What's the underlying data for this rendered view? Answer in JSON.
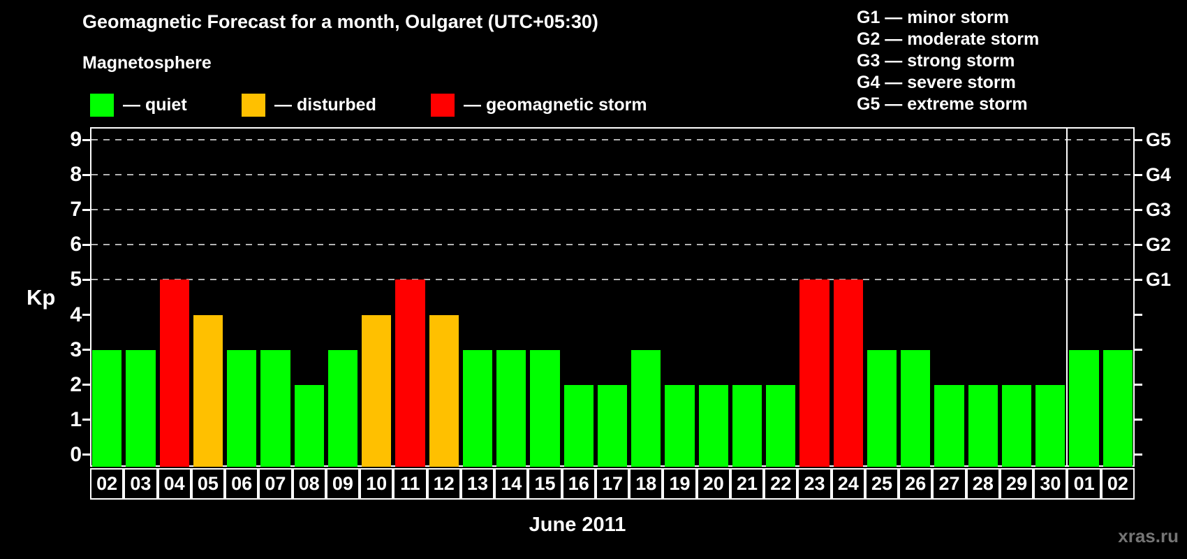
{
  "title": "Geomagnetic Forecast for a month, Oulgaret (UTC+05:30)",
  "legend": {
    "heading": "Magnetosphere",
    "items": [
      {
        "name": "quiet",
        "label": "— quiet",
        "color": "#00ff00"
      },
      {
        "name": "disturbed",
        "label": "— disturbed",
        "color": "#ffc000"
      },
      {
        "name": "storm",
        "label": "— geomagnetic storm",
        "color": "#ff0000"
      }
    ]
  },
  "storm_scale_legend": [
    "G1 — minor storm",
    "G2 — moderate storm",
    "G3 — strong storm",
    "G4 — severe storm",
    "G5 — extreme storm"
  ],
  "chart_data": {
    "type": "bar",
    "title": "Geomagnetic Forecast for a month, Oulgaret (UTC+05:30)",
    "xlabel": "June 2011",
    "ylabel": "Kp",
    "ylim": [
      0,
      9
    ],
    "yticks": [
      0,
      1,
      2,
      3,
      4,
      5,
      6,
      7,
      8,
      9
    ],
    "gridlines_at": [
      5,
      6,
      7,
      8,
      9
    ],
    "grid": "dashed, only at storm levels G1–G5",
    "right_axis": [
      {
        "kp": 5,
        "label": "G1"
      },
      {
        "kp": 6,
        "label": "G2"
      },
      {
        "kp": 7,
        "label": "G3"
      },
      {
        "kp": 8,
        "label": "G4"
      },
      {
        "kp": 9,
        "label": "G5"
      }
    ],
    "categories": [
      "02",
      "03",
      "04",
      "05",
      "06",
      "07",
      "08",
      "09",
      "10",
      "11",
      "12",
      "13",
      "14",
      "15",
      "16",
      "17",
      "18",
      "19",
      "20",
      "21",
      "22",
      "23",
      "24",
      "25",
      "26",
      "27",
      "28",
      "29",
      "30",
      "01",
      "02"
    ],
    "values": [
      3,
      3,
      5,
      4,
      3,
      3,
      2,
      3,
      4,
      5,
      4,
      3,
      3,
      3,
      2,
      2,
      3,
      2,
      2,
      2,
      2,
      5,
      5,
      3,
      3,
      2,
      2,
      2,
      2,
      3,
      3
    ],
    "statuses": [
      "quiet",
      "quiet",
      "storm",
      "disturbed",
      "quiet",
      "quiet",
      "quiet",
      "quiet",
      "disturbed",
      "storm",
      "disturbed",
      "quiet",
      "quiet",
      "quiet",
      "quiet",
      "quiet",
      "quiet",
      "quiet",
      "quiet",
      "quiet",
      "quiet",
      "storm",
      "storm",
      "quiet",
      "quiet",
      "quiet",
      "quiet",
      "quiet",
      "quiet",
      "quiet",
      "quiet"
    ],
    "status_colors": {
      "quiet": "#00ff00",
      "disturbed": "#ffc000",
      "storm": "#ff0000"
    },
    "month_separator_before_index": 29
  },
  "watermark": "xras.ru"
}
